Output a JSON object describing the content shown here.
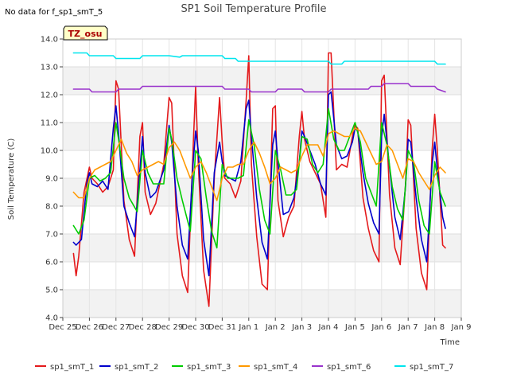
{
  "chart_data": {
    "type": "line",
    "title": "SP1 Soil Temperature Profile",
    "no_data_note": "No data for f_sp1_smT_5",
    "site_badge": "TZ_osu",
    "xlabel": "Time",
    "ylabel": "Soil Temperature (C)",
    "ylim": [
      4.0,
      14.0
    ],
    "yticks": [
      "4.0",
      "5.0",
      "6.0",
      "7.0",
      "8.0",
      "9.0",
      "10.0",
      "11.0",
      "12.0",
      "13.0",
      "14.0"
    ],
    "xlim": [
      0,
      15
    ],
    "xticks": [
      "Dec 25",
      "Dec 26",
      "Dec 27",
      "Dec 28",
      "Dec 29",
      "Dec 30",
      "Dec 31",
      "Jan 1",
      "Jan 2",
      "Jan 3",
      "Jan 4",
      "Jan 5",
      "Jan 6",
      "Jan 7",
      "Jan 8",
      "Jan 9"
    ],
    "grid": true,
    "legend_position": "bottom",
    "series": [
      {
        "name": "sp1_smT_1",
        "color": "#e41a1c",
        "x": [
          0.4,
          0.5,
          0.6,
          0.8,
          1.0,
          1.1,
          1.3,
          1.5,
          1.7,
          1.9,
          2.0,
          2.1,
          2.3,
          2.5,
          2.7,
          2.9,
          3.0,
          3.1,
          3.3,
          3.5,
          3.8,
          4.0,
          4.1,
          4.3,
          4.5,
          4.7,
          4.9,
          5.0,
          5.1,
          5.3,
          5.5,
          5.7,
          5.9,
          6.0,
          6.1,
          6.3,
          6.5,
          6.7,
          6.9,
          7.0,
          7.1,
          7.3,
          7.5,
          7.7,
          7.9,
          8.0,
          8.1,
          8.3,
          8.5,
          8.7,
          8.9,
          9.0,
          9.1,
          9.3,
          9.5,
          9.7,
          9.9,
          10.0,
          10.1,
          10.3,
          10.5,
          10.7,
          10.9,
          11.0,
          11.1,
          11.3,
          11.5,
          11.7,
          11.9,
          12.0,
          12.1,
          12.3,
          12.5,
          12.7,
          12.9,
          13.0,
          13.1,
          13.3,
          13.5,
          13.7,
          13.9,
          14.0,
          14.1,
          14.3,
          14.4
        ],
        "values": [
          6.3,
          5.5,
          6.2,
          8.5,
          9.4,
          9.0,
          8.8,
          8.5,
          8.7,
          9.3,
          12.5,
          12.2,
          8.2,
          6.8,
          6.2,
          10.5,
          11.0,
          8.5,
          7.7,
          8.1,
          9.5,
          11.9,
          11.7,
          7.0,
          5.5,
          4.9,
          10.0,
          12.3,
          9.5,
          5.7,
          4.4,
          9.0,
          11.9,
          10.3,
          9.0,
          8.8,
          8.3,
          8.9,
          11.8,
          13.4,
          9.5,
          6.9,
          5.2,
          5.0,
          11.5,
          11.6,
          8.2,
          6.9,
          7.6,
          8.0,
          10.5,
          11.4,
          10.4,
          9.6,
          9.2,
          8.8,
          7.6,
          13.5,
          13.5,
          9.3,
          9.5,
          9.4,
          10.5,
          10.9,
          10.8,
          8.3,
          7.2,
          6.4,
          6.0,
          12.5,
          12.7,
          8.4,
          6.5,
          5.9,
          8.8,
          11.1,
          10.9,
          7.2,
          5.6,
          5.0,
          10.0,
          11.3,
          10.0,
          6.6,
          6.5
        ]
      },
      {
        "name": "sp1_smT_2",
        "color": "#0000cc",
        "x": [
          0.4,
          0.5,
          0.7,
          0.9,
          1.0,
          1.1,
          1.3,
          1.5,
          1.7,
          1.9,
          2.0,
          2.1,
          2.3,
          2.5,
          2.7,
          2.9,
          3.0,
          3.1,
          3.3,
          3.5,
          3.8,
          4.0,
          4.1,
          4.3,
          4.5,
          4.7,
          4.9,
          5.0,
          5.1,
          5.3,
          5.5,
          5.7,
          5.9,
          6.0,
          6.1,
          6.3,
          6.5,
          6.7,
          6.9,
          7.0,
          7.1,
          7.3,
          7.5,
          7.7,
          7.9,
          8.0,
          8.1,
          8.3,
          8.5,
          8.7,
          8.9,
          9.0,
          9.1,
          9.3,
          9.5,
          9.7,
          9.9,
          10.0,
          10.1,
          10.3,
          10.5,
          10.7,
          10.9,
          11.0,
          11.1,
          11.3,
          11.5,
          11.7,
          11.9,
          12.0,
          12.1,
          12.3,
          12.5,
          12.7,
          12.9,
          13.0,
          13.1,
          13.3,
          13.5,
          13.7,
          13.9,
          14.0,
          14.1,
          14.3,
          14.4
        ],
        "values": [
          6.7,
          6.6,
          6.8,
          8.8,
          9.2,
          8.8,
          8.7,
          8.9,
          8.6,
          10.8,
          11.6,
          10.6,
          8.0,
          7.4,
          6.9,
          9.3,
          10.5,
          9.2,
          8.3,
          8.5,
          9.3,
          10.9,
          10.3,
          8.0,
          6.6,
          6.1,
          9.5,
          10.7,
          10.0,
          6.8,
          5.5,
          9.2,
          10.3,
          9.6,
          9.1,
          9.0,
          8.9,
          9.6,
          11.5,
          11.8,
          10.5,
          8.3,
          6.7,
          6.1,
          10.2,
          10.7,
          9.6,
          7.7,
          7.8,
          8.3,
          9.6,
          10.7,
          10.5,
          10.0,
          9.5,
          8.8,
          8.4,
          12.0,
          12.1,
          10.2,
          9.7,
          9.8,
          10.3,
          10.8,
          10.7,
          9.2,
          8.1,
          7.4,
          7.0,
          10.5,
          11.3,
          9.4,
          7.6,
          6.8,
          8.7,
          10.4,
          10.3,
          8.3,
          6.8,
          6.0,
          9.5,
          10.3,
          9.3,
          7.6,
          7.2
        ]
      },
      {
        "name": "sp1_smT_3",
        "color": "#00cc00",
        "x": [
          0.4,
          0.6,
          0.8,
          1.0,
          1.2,
          1.4,
          1.6,
          1.8,
          2.0,
          2.1,
          2.3,
          2.5,
          2.8,
          3.0,
          3.2,
          3.4,
          3.6,
          3.8,
          4.0,
          4.1,
          4.3,
          4.5,
          4.8,
          5.0,
          5.2,
          5.4,
          5.6,
          5.8,
          6.0,
          6.2,
          6.4,
          6.6,
          6.8,
          7.0,
          7.2,
          7.4,
          7.6,
          7.8,
          8.0,
          8.2,
          8.4,
          8.6,
          8.8,
          9.0,
          9.2,
          9.4,
          9.6,
          9.8,
          10.0,
          10.2,
          10.4,
          10.6,
          10.8,
          11.0,
          11.2,
          11.4,
          11.6,
          11.8,
          12.0,
          12.2,
          12.4,
          12.6,
          12.8,
          13.0,
          13.2,
          13.4,
          13.6,
          13.8,
          14.0,
          14.2,
          14.4
        ],
        "values": [
          7.3,
          7.0,
          7.5,
          9.0,
          9.1,
          8.9,
          9.0,
          9.2,
          11.0,
          10.4,
          9.0,
          8.3,
          7.8,
          10.0,
          9.2,
          8.8,
          8.8,
          8.8,
          10.8,
          10.4,
          9.0,
          8.2,
          7.1,
          10.0,
          9.7,
          8.3,
          7.1,
          6.5,
          9.5,
          9.0,
          9.0,
          9.0,
          9.1,
          11.1,
          10.2,
          8.6,
          7.5,
          7.0,
          10.0,
          9.3,
          8.4,
          8.4,
          8.6,
          10.5,
          10.4,
          9.5,
          9.2,
          9.5,
          11.5,
          10.4,
          10.0,
          10.0,
          10.5,
          11.0,
          10.3,
          9.0,
          8.5,
          8.0,
          11.0,
          10.2,
          8.7,
          7.9,
          7.5,
          10.0,
          9.6,
          8.2,
          7.3,
          7.0,
          9.6,
          8.5,
          8.0
        ]
      },
      {
        "name": "sp1_smT_4",
        "color": "#ff9900",
        "x": [
          0.4,
          0.6,
          0.8,
          1.0,
          1.2,
          1.4,
          1.6,
          1.8,
          2.0,
          2.2,
          2.4,
          2.6,
          2.8,
          3.0,
          3.2,
          3.4,
          3.6,
          3.8,
          4.0,
          4.2,
          4.4,
          4.6,
          4.8,
          5.0,
          5.2,
          5.4,
          5.6,
          5.8,
          6.0,
          6.2,
          6.4,
          6.6,
          6.8,
          7.0,
          7.2,
          7.4,
          7.6,
          7.8,
          8.0,
          8.2,
          8.4,
          8.6,
          8.8,
          9.0,
          9.2,
          9.4,
          9.6,
          9.8,
          10.0,
          10.2,
          10.4,
          10.6,
          10.8,
          11.0,
          11.2,
          11.4,
          11.6,
          11.8,
          12.0,
          12.2,
          12.4,
          12.6,
          12.8,
          13.0,
          13.2,
          13.4,
          13.6,
          13.8,
          14.0,
          14.2,
          14.4
        ],
        "values": [
          8.5,
          8.3,
          8.3,
          9.0,
          9.3,
          9.4,
          9.5,
          9.6,
          10.0,
          10.4,
          9.9,
          9.6,
          9.1,
          9.3,
          9.4,
          9.5,
          9.6,
          9.5,
          10.1,
          10.3,
          10.0,
          9.5,
          9.0,
          9.4,
          9.6,
          9.2,
          8.7,
          8.2,
          9.0,
          9.4,
          9.4,
          9.5,
          9.5,
          10.0,
          10.3,
          9.9,
          9.4,
          8.8,
          9.0,
          9.4,
          9.3,
          9.2,
          9.3,
          9.8,
          10.2,
          10.2,
          10.2,
          9.8,
          10.6,
          10.7,
          10.6,
          10.5,
          10.5,
          10.8,
          10.7,
          10.3,
          9.9,
          9.5,
          9.6,
          10.2,
          10.0,
          9.5,
          9.0,
          9.7,
          9.6,
          9.2,
          8.9,
          8.6,
          9.1,
          9.4,
          9.2
        ]
      },
      {
        "name": "sp1_smT_6",
        "color": "#9933cc",
        "x": [
          0.4,
          1.0,
          1.1,
          2.0,
          2.1,
          2.9,
          3.0,
          6.0,
          6.1,
          7.0,
          7.1,
          8.0,
          8.1,
          9.0,
          9.1,
          10.0,
          10.1,
          11.5,
          11.6,
          12.0,
          12.1,
          13.0,
          13.1,
          14.0,
          14.1,
          14.4
        ],
        "values": [
          12.2,
          12.2,
          12.1,
          12.1,
          12.2,
          12.2,
          12.3,
          12.3,
          12.2,
          12.2,
          12.1,
          12.1,
          12.2,
          12.2,
          12.1,
          12.1,
          12.2,
          12.2,
          12.3,
          12.3,
          12.4,
          12.4,
          12.3,
          12.3,
          12.2,
          12.1
        ]
      },
      {
        "name": "sp1_smT_7",
        "color": "#00e5ee",
        "x": [
          0.4,
          0.9,
          1.0,
          1.9,
          2.0,
          2.9,
          3.0,
          4.0,
          4.4,
          4.5,
          6.0,
          6.1,
          6.5,
          6.6,
          10.0,
          10.1,
          10.5,
          10.6,
          14.0,
          14.1,
          14.4
        ],
        "values": [
          13.5,
          13.5,
          13.4,
          13.4,
          13.3,
          13.3,
          13.4,
          13.4,
          13.35,
          13.4,
          13.4,
          13.3,
          13.3,
          13.2,
          13.2,
          13.1,
          13.1,
          13.2,
          13.2,
          13.1,
          13.1
        ]
      }
    ]
  }
}
